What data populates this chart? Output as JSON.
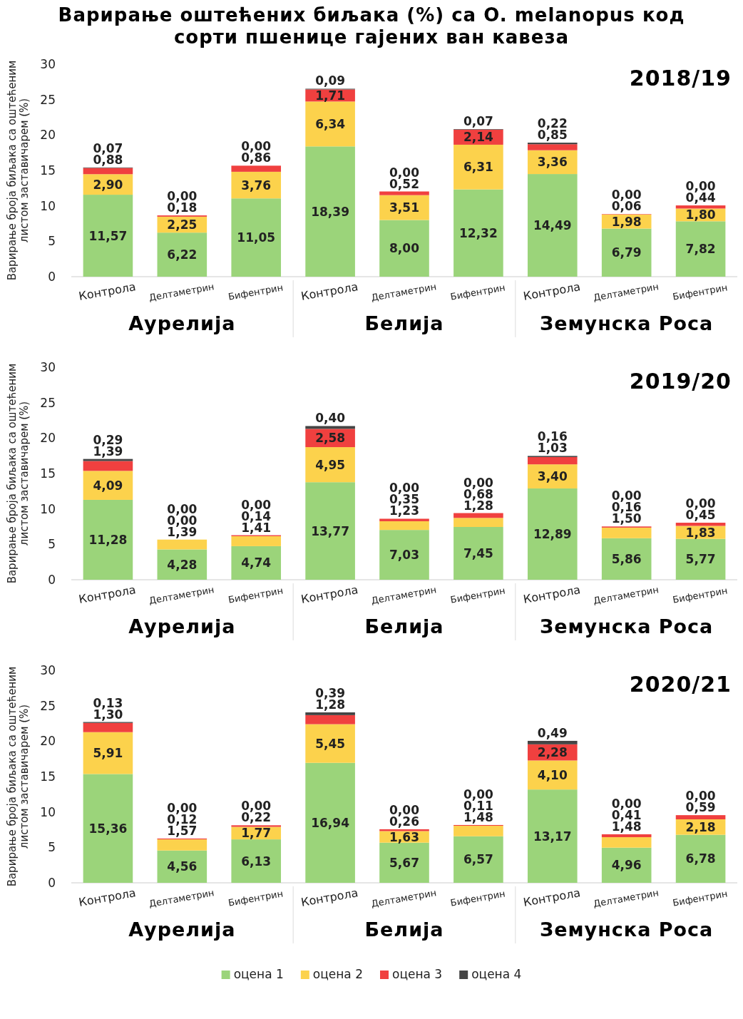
{
  "chart_data": [
    {
      "type": "bar",
      "title": "Варирање оштећених биљака (%) са O. melanopus код сорти пшенице гајених ван кавеза",
      "subtitle": "2018/19",
      "ylabel": "Варирање броја биљака са оштећеним листом заставичарем (%)",
      "categories": [
        "Контрола",
        "Делтаметрин",
        "Бифентрин",
        "Контрола",
        "Делтаметрин",
        "Бифентрин",
        "Контрола",
        "Делтаметрин",
        "Бифентрин"
      ],
      "annotations": [
        "Аурелија",
        "Белија",
        "Земунска Роса"
      ],
      "stacked": true,
      "ylim": [
        0,
        30
      ],
      "yticks": [
        0,
        5,
        10,
        15,
        20,
        25,
        30
      ],
      "series": [
        {
          "color": "#9bd47a",
          "values": [
            11.57,
            6.22,
            11.05,
            18.39,
            8.0,
            12.32,
            14.49,
            6.79,
            7.82
          ],
          "value_labels": [
            "11,57",
            "6,22",
            "11,05",
            "18,39",
            "8,00",
            "12,32",
            "14,49",
            "6,79",
            "7,82"
          ]
        },
        {
          "color": "#fcd24c",
          "values": [
            2.9,
            2.25,
            3.76,
            6.34,
            3.51,
            6.31,
            3.36,
            1.98,
            1.8
          ],
          "value_labels": [
            "2,90",
            "2,25",
            "3,76",
            "6,34",
            "3,51",
            "6,31",
            "3,36",
            "1,98",
            "1,80"
          ]
        },
        {
          "color": "#f0403f",
          "values": [
            0.88,
            0.18,
            0.86,
            1.71,
            0.52,
            2.14,
            0.85,
            0.06,
            0.44
          ],
          "value_labels": [
            "0,88",
            "0,18",
            "0,86",
            "1,71",
            "0,52",
            "2,14",
            "0,85",
            "0,06",
            "0,44"
          ]
        },
        {
          "color": "#444444",
          "values": [
            0.07,
            0.0,
            0.0,
            0.09,
            0.0,
            0.07,
            0.22,
            0.0,
            0.0
          ],
          "value_labels": [
            "0,07",
            "0,00",
            "0,00",
            "0,09",
            "0,00",
            "0,07",
            "0,22",
            "0,00",
            "0,00"
          ]
        }
      ]
    },
    {
      "type": "bar",
      "subtitle": "2019/20",
      "ylabel": "Варирање броја биљака са оштећеним листом заставичарем (%)",
      "categories": [
        "Контрола",
        "Делтаметрин",
        "Бифентрин",
        "Контрола",
        "Делтаметрин",
        "Бифентрин",
        "Контрола",
        "Делтаметрин",
        "Бифентрин"
      ],
      "annotations": [
        "Аурелија",
        "Белија",
        "Земунска Роса"
      ],
      "stacked": true,
      "ylim": [
        0,
        30
      ],
      "yticks": [
        0,
        5,
        10,
        15,
        20,
        25,
        30
      ],
      "series": [
        {
          "color": "#9bd47a",
          "values": [
            11.28,
            4.28,
            4.74,
            13.77,
            7.03,
            7.45,
            12.89,
            5.86,
            5.77
          ],
          "value_labels": [
            "11,28",
            "4,28",
            "4,74",
            "13,77",
            "7,03",
            "7,45",
            "12,89",
            "5,86",
            "5,77"
          ]
        },
        {
          "color": "#fcd24c",
          "values": [
            4.09,
            1.39,
            1.41,
            4.95,
            1.23,
            1.28,
            3.4,
            1.5,
            1.83
          ],
          "value_labels": [
            "4,09",
            "1,39",
            "1,41",
            "4,95",
            "1,23",
            "1,28",
            "3,40",
            "1,50",
            "1,83"
          ]
        },
        {
          "color": "#f0403f",
          "values": [
            1.39,
            0.0,
            0.14,
            2.58,
            0.35,
            0.68,
            1.03,
            0.16,
            0.45
          ],
          "value_labels": [
            "1,39",
            "0,00",
            "0,14",
            "2,58",
            "0,35",
            "0,68",
            "1,03",
            "0,16",
            "0,45"
          ]
        },
        {
          "color": "#444444",
          "values": [
            0.29,
            0.0,
            0.0,
            0.4,
            0.0,
            0.0,
            0.16,
            0.0,
            0.0
          ],
          "value_labels": [
            "0,29",
            "0,00",
            "0,00",
            "0,40",
            "0,00",
            "0,00",
            "0,16",
            "0,00",
            "0,00"
          ]
        }
      ]
    },
    {
      "type": "bar",
      "subtitle": "2020/21",
      "ylabel": "Варирање броја биљака са оштећеним листом заставичарем (%)",
      "categories": [
        "Контрола",
        "Делтаметрин",
        "Бифентрин",
        "Контрола",
        "Делтаметрин",
        "Бифентрин",
        "Контрола",
        "Делтаметрин",
        "Бифентрин"
      ],
      "annotations": [
        "Аурелија",
        "Белија",
        "Земунска Роса"
      ],
      "stacked": true,
      "legend": "bottom",
      "ylim": [
        0,
        30
      ],
      "yticks": [
        0,
        5,
        10,
        15,
        20,
        25,
        30
      ],
      "series": [
        {
          "name": "оцена 1",
          "color": "#9bd47a",
          "values": [
            15.36,
            4.56,
            6.13,
            16.94,
            5.67,
            6.57,
            13.17,
            4.96,
            6.78
          ],
          "value_labels": [
            "15,36",
            "4,56",
            "6,13",
            "16,94",
            "5,67",
            "6,57",
            "13,17",
            "4,96",
            "6,78"
          ]
        },
        {
          "name": "оцена 2",
          "color": "#fcd24c",
          "values": [
            5.91,
            1.57,
            1.77,
            5.45,
            1.63,
            1.48,
            4.1,
            1.48,
            2.18
          ],
          "value_labels": [
            "5,91",
            "1,57",
            "1,77",
            "5,45",
            "1,63",
            "1,48",
            "4,10",
            "1,48",
            "2,18"
          ]
        },
        {
          "name": "оцена 3",
          "color": "#f0403f",
          "values": [
            1.3,
            0.12,
            0.22,
            1.28,
            0.26,
            0.11,
            2.28,
            0.41,
            0.59
          ],
          "value_labels": [
            "1,30",
            "0,12",
            "0,22",
            "1,28",
            "0,26",
            "0,11",
            "2,28",
            "0,41",
            "0,59"
          ]
        },
        {
          "name": "оцена 4",
          "color": "#444444",
          "values": [
            0.13,
            0.0,
            0.0,
            0.39,
            0.0,
            0.0,
            0.49,
            0.0,
            0.0
          ],
          "value_labels": [
            "0,13",
            "0,00",
            "0,00",
            "0,39",
            "0,00",
            "0,00",
            "0,49",
            "0,00",
            "0,00"
          ]
        }
      ]
    }
  ]
}
